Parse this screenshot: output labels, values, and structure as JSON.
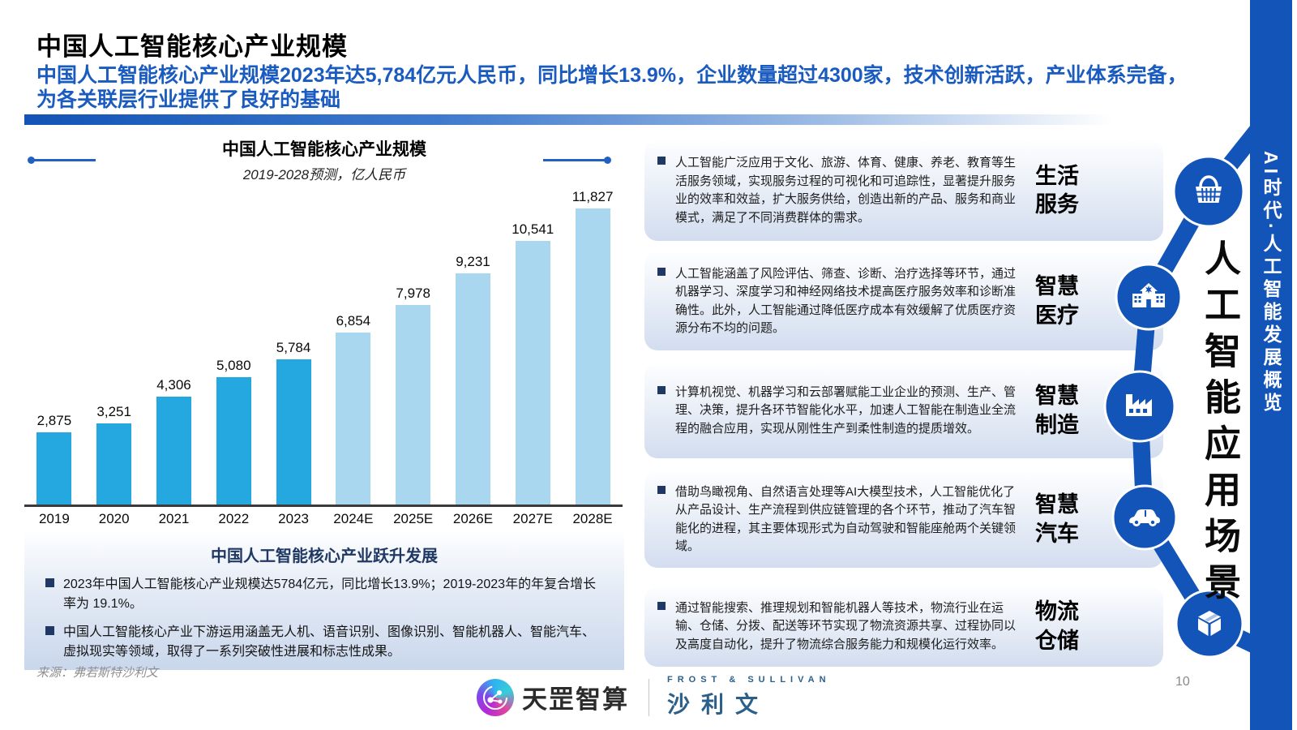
{
  "page": {
    "title": "中国人工智能核心产业规模",
    "subtitle": "中国人工智能核心产业规模2023年达5,784亿元人民币，同比增长13.9%，企业数量超过4300家，技术创新活跃，产业体系完备，为各关联层行业提供了良好的基础",
    "page_number": "10",
    "source": "来源：弗若斯特沙利文"
  },
  "chart_data": {
    "type": "bar",
    "title": "中国人工智能核心产业规模",
    "subtitle": "2019-2028预测，亿人民币",
    "categories": [
      "2019",
      "2020",
      "2021",
      "2022",
      "2023",
      "2024E",
      "2025E",
      "2026E",
      "2027E",
      "2028E"
    ],
    "values": [
      2875,
      3251,
      4306,
      5080,
      5784,
      6854,
      7978,
      9231,
      10541,
      11827
    ],
    "labels": [
      "2,875",
      "3,251",
      "4,306",
      "5,080",
      "5,784",
      "6,854",
      "7,978",
      "9,231",
      "10,541",
      "11,827"
    ],
    "actual_count": 5,
    "actual_color": "#25A8E0",
    "forecast_color": "#A9D7EF",
    "xlabel": "",
    "ylabel": "",
    "ylim": [
      0,
      12500
    ],
    "grid": false,
    "legend": "none"
  },
  "highlight_box": {
    "title": "中国人工智能核心产业跃升发展",
    "bullets": [
      "2023年中国人工智能核心产业规模达5784亿元，同比增长13.9%；2019-2023年的年复合增长率为 19.1%。",
      "中国人工智能核心产业下游运用涵盖无人机、语音识别、图像识别、智能机器人、智能汽车、虚拟现实等领域，取得了一系列突破性进展和标志性成果。"
    ]
  },
  "application_scenarios": {
    "vertical_title": "人工智能应用场景",
    "items": [
      {
        "label": "生活服务",
        "icon": "basket-icon",
        "text": "人工智能广泛应用于文化、旅游、体育、健康、养老、教育等生活服务领域，实现服务过程的可视化和可追踪性，显著提升服务业的效率和效益，扩大服务供给，创造出新的产品、服务和商业模式，满足了不同消费群体的需求。"
      },
      {
        "label": "智慧医疗",
        "icon": "hospital-icon",
        "text": "人工智能涵盖了风险评估、筛查、诊断、治疗选择等环节，通过机器学习、深度学习和神经网络技术提高医疗服务效率和诊断准确性。此外，人工智能通过降低医疗成本有效缓解了优质医疗资源分布不均的问题。"
      },
      {
        "label": "智慧制造",
        "icon": "factory-icon",
        "text": "计算机视觉、机器学习和云部署赋能工业企业的预测、生产、管理、决策，提升各环节智能化水平，加速人工智能在制造业全流程的融合应用，实现从刚性生产到柔性制造的提质增效。"
      },
      {
        "label": "智慧汽车",
        "icon": "car-icon",
        "text": "借助鸟瞰视角、自然语言处理等AI大模型技术，人工智能优化了从产品设计、生产流程到供应链管理的各个环节，推动了汽车智能化的进程，其主要体现形式为自动驾驶和智能座舱两个关键领域。"
      },
      {
        "label": "物流仓储",
        "icon": "box-icon",
        "text": "通过智能搜索、推理规划和智能机器人等技术，物流行业在运输、仓储、分拨、配送等环节实现了物流资源共享、过程协同以及高度自动化，提升了物流综合服务能力和规模化运行效率。"
      }
    ],
    "path_color": "#1254B8"
  },
  "sidebar": {
    "vertical_label": "AI时代·人工智能发展概览",
    "color": "#1254B8"
  },
  "footer": {
    "logo1_text": "天罡智算",
    "logo2_top": "FROST & SULLIVAN",
    "logo2_bottom": "沙利文"
  }
}
